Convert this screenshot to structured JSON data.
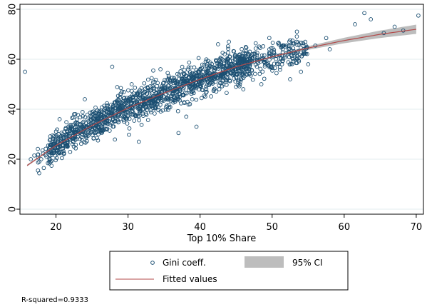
{
  "chart_data": {
    "type": "scatter",
    "title": "",
    "xlabel": "Top 10% Share",
    "ylabel": "",
    "xlim": [
      15,
      71
    ],
    "ylim": [
      -2,
      82
    ],
    "x_ticks": [
      20,
      30,
      40,
      50,
      60,
      70
    ],
    "y_ticks": [
      0,
      20,
      40,
      60,
      80
    ],
    "grid": "horizontal",
    "legend_position": "bottom",
    "legend": {
      "scatter_label": "Gini coeff.",
      "ci_label": "95% CI",
      "fit_label": "Fitted values"
    },
    "note": "R-squared=0.9333",
    "colors": {
      "points": "#1b4f72",
      "fit_line": "#b34a4a",
      "ci_band": "#bdbdbd",
      "grid": "#e3ecef",
      "frame": "#000000"
    },
    "fit": {
      "x": [
        16,
        20,
        25,
        30,
        35,
        40,
        45,
        50,
        55,
        60,
        65,
        70
      ],
      "y": [
        17.5,
        25.5,
        33.5,
        40.5,
        46.5,
        52.0,
        57.0,
        61.0,
        64.5,
        67.5,
        70.0,
        72.0
      ]
    },
    "outliers": [
      {
        "x": 15.7,
        "y": 55
      },
      {
        "x": 27.8,
        "y": 57
      },
      {
        "x": 62.8,
        "y": 78.5
      },
      {
        "x": 63.7,
        "y": 76
      },
      {
        "x": 61.5,
        "y": 74
      },
      {
        "x": 70.3,
        "y": 77.5
      },
      {
        "x": 68.2,
        "y": 71.5
      },
      {
        "x": 65.5,
        "y": 70.5
      },
      {
        "x": 67.0,
        "y": 73.0
      },
      {
        "x": 58.0,
        "y": 64.0
      },
      {
        "x": 57.5,
        "y": 68.5
      },
      {
        "x": 56.0,
        "y": 65.5
      },
      {
        "x": 55.0,
        "y": 58.0
      },
      {
        "x": 54.0,
        "y": 55.0
      },
      {
        "x": 52.5,
        "y": 52.0
      },
      {
        "x": 48.5,
        "y": 50.0
      },
      {
        "x": 46.0,
        "y": 48.0
      },
      {
        "x": 42.5,
        "y": 66.0
      },
      {
        "x": 44.0,
        "y": 67.0
      },
      {
        "x": 39.5,
        "y": 33.0
      },
      {
        "x": 37.0,
        "y": 30.5
      },
      {
        "x": 31.5,
        "y": 27.0
      },
      {
        "x": 33.5,
        "y": 55.5
      },
      {
        "x": 34.5,
        "y": 56.0
      },
      {
        "x": 35.5,
        "y": 54.5
      },
      {
        "x": 24.0,
        "y": 44.0
      },
      {
        "x": 22.5,
        "y": 38.0
      },
      {
        "x": 20.5,
        "y": 36.0
      },
      {
        "x": 17.5,
        "y": 15.5
      },
      {
        "x": 18.3,
        "y": 16.5
      },
      {
        "x": 16.5,
        "y": 20.0
      },
      {
        "x": 29.0,
        "y": 48.5
      },
      {
        "x": 30.5,
        "y": 50.0
      }
    ],
    "cloud": {
      "x_range": [
        16.5,
        55
      ],
      "count": 1600,
      "spread": 3.2
    }
  }
}
